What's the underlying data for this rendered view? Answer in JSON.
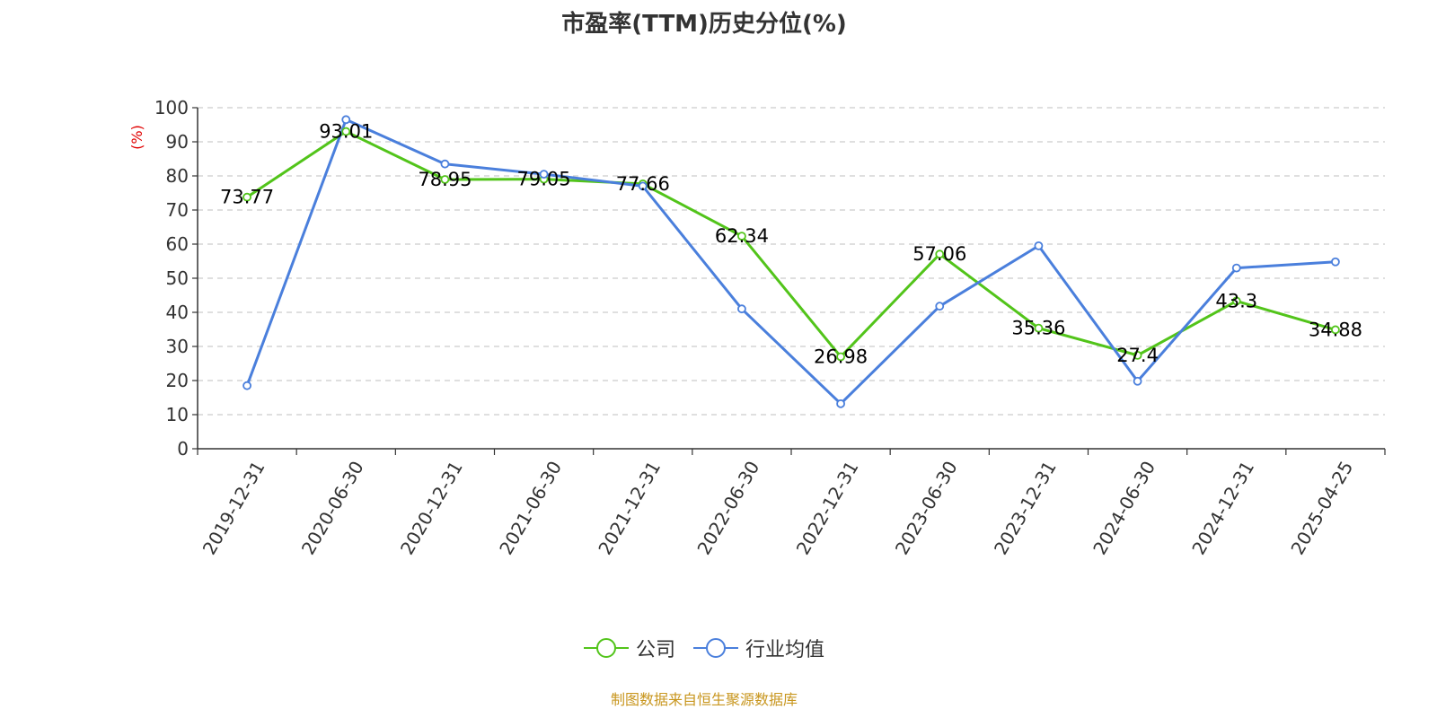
{
  "chart_data": {
    "type": "line",
    "title": "市盈率(TTM)历史分位(%)",
    "ylabel": "(%)",
    "xlabel": "",
    "ylim": [
      0,
      100
    ],
    "yticks": [
      0,
      10,
      20,
      30,
      40,
      50,
      60,
      70,
      80,
      90,
      100
    ],
    "categories": [
      "2019-12-31",
      "2020-06-30",
      "2020-12-31",
      "2021-06-30",
      "2021-12-31",
      "2022-06-30",
      "2022-12-31",
      "2023-06-30",
      "2023-12-31",
      "2024-06-30",
      "2024-12-31",
      "2025-04-25"
    ],
    "grid": true,
    "legend_position": "bottom",
    "series": [
      {
        "name": "公司",
        "color": "#52c41a",
        "values": [
          73.77,
          93.01,
          78.95,
          79.05,
          77.66,
          62.34,
          26.98,
          57.06,
          35.36,
          27.4,
          43.3,
          34.88
        ],
        "labels": [
          "73.77",
          "93.01",
          "78.95",
          "79.05",
          "77.66",
          "62.34",
          "26.98",
          "57.06",
          "35.36",
          "27.4",
          "43.3",
          "34.88"
        ]
      },
      {
        "name": "行业均值",
        "color": "#4a7fdc",
        "values": [
          18.5,
          96.5,
          83.5,
          80.5,
          77.0,
          41.0,
          13.2,
          41.8,
          59.5,
          19.8,
          53.0,
          54.8
        ]
      }
    ]
  },
  "source_note": "制图数据来自恒生聚源数据库"
}
